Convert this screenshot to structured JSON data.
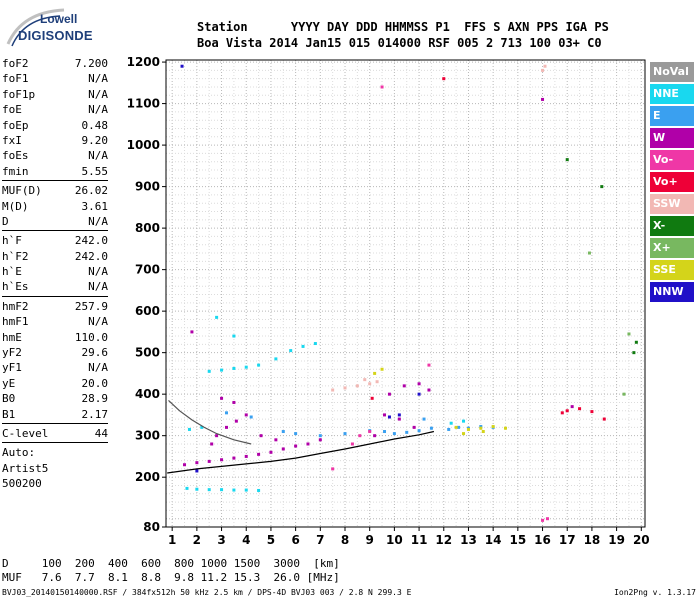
{
  "logo": {
    "line1": "Lowell",
    "line2": "DIGISONDE"
  },
  "header": {
    "row1": [
      "Station",
      "YYYY",
      "DAY",
      "DDD",
      "HHMMSS",
      "P1",
      "FFS",
      "S",
      "AXN",
      "PPS",
      "IGA",
      "PS"
    ],
    "row2": [
      "Boa Vista",
      "2014",
      "Jan15",
      "015",
      "014000",
      "RSF",
      "005",
      "2",
      "713",
      "100",
      "03+",
      "C0"
    ]
  },
  "params": {
    "group1": [
      {
        "label": "foF2",
        "value": "7.200"
      },
      {
        "label": "foF1",
        "value": "N/A"
      },
      {
        "label": "foF1p",
        "value": "N/A"
      },
      {
        "label": "foE",
        "value": "N/A"
      },
      {
        "label": "foEp",
        "value": "0.48"
      },
      {
        "label": "fxI",
        "value": "9.20"
      },
      {
        "label": "foEs",
        "value": "N/A"
      },
      {
        "label": "fmin",
        "value": "5.55"
      }
    ],
    "group2": [
      {
        "label": "MUF(D)",
        "value": "26.02"
      },
      {
        "label": "M(D)",
        "value": "3.61"
      },
      {
        "label": "D",
        "value": "N/A"
      }
    ],
    "group3": [
      {
        "label": "h`F",
        "value": "242.0"
      },
      {
        "label": "h`F2",
        "value": "242.0"
      },
      {
        "label": "h`E",
        "value": "N/A"
      },
      {
        "label": "h`Es",
        "value": "N/A"
      }
    ],
    "group4": [
      {
        "label": "hmF2",
        "value": "257.9"
      },
      {
        "label": "hmF1",
        "value": "N/A"
      },
      {
        "label": "hmE",
        "value": "110.0"
      },
      {
        "label": "yF2",
        "value": "29.6"
      },
      {
        "label": "yF1",
        "value": "N/A"
      },
      {
        "label": "yE",
        "value": "20.0"
      },
      {
        "label": "B0",
        "value": "28.9"
      },
      {
        "label": "B1",
        "value": "2.17"
      }
    ],
    "group5": [
      {
        "label": "C-level",
        "value": "44"
      }
    ],
    "notes": [
      "Auto:",
      "Artist5",
      "500200"
    ]
  },
  "legend": [
    {
      "label": "NoVal",
      "color": "#9a9a9a"
    },
    {
      "label": "NNE",
      "color": "#19d8ef"
    },
    {
      "label": "E",
      "color": "#3aa0f0"
    },
    {
      "label": "W",
      "color": "#b000a8"
    },
    {
      "label": "Vo-",
      "color": "#ef37a6"
    },
    {
      "label": "Vo+",
      "color": "#ee0037"
    },
    {
      "label": "SSW",
      "color": "#f2b8b4"
    },
    {
      "label": "X-",
      "color": "#107a10"
    },
    {
      "label": "X+",
      "color": "#78b860"
    },
    {
      "label": "SSE",
      "color": "#d4d41a"
    },
    {
      "label": "NNW",
      "color": "#2010c8"
    }
  ],
  "chart_data": {
    "type": "scatter",
    "title": "",
    "xlabel": "",
    "ylabel": "",
    "xlim": [
      0.75,
      20.15
    ],
    "ylim": [
      80,
      1205
    ],
    "x_ticks": [
      1,
      2,
      3,
      4,
      5,
      6,
      7,
      8,
      9,
      10,
      11,
      12,
      13,
      14,
      15,
      16,
      17,
      18,
      19,
      20
    ],
    "y_ticks": [
      80,
      200,
      300,
      400,
      500,
      600,
      700,
      800,
      900,
      1000,
      1100,
      1200
    ],
    "grid": true,
    "series": [
      {
        "color": "#19d8ef",
        "points": [
          [
            1.6,
            173
          ],
          [
            2.0,
            171
          ],
          [
            2.5,
            170
          ],
          [
            3.0,
            170
          ],
          [
            3.5,
            169
          ],
          [
            4.0,
            169
          ],
          [
            4.5,
            168
          ],
          [
            2.5,
            455
          ],
          [
            3.0,
            458
          ],
          [
            3.5,
            462
          ],
          [
            4.0,
            465
          ],
          [
            4.5,
            470
          ],
          [
            5.2,
            485
          ],
          [
            5.8,
            505
          ],
          [
            6.3,
            515
          ],
          [
            6.8,
            522
          ],
          [
            3.5,
            540
          ],
          [
            2.8,
            585
          ],
          [
            1.7,
            315
          ],
          [
            2.2,
            320
          ],
          [
            12.3,
            330
          ],
          [
            12.8,
            335
          ]
        ]
      },
      {
        "color": "#3aa0f0",
        "points": [
          [
            9.6,
            310
          ],
          [
            10.0,
            305
          ],
          [
            10.5,
            308
          ],
          [
            11.0,
            312
          ],
          [
            11.5,
            318
          ],
          [
            12.2,
            315
          ],
          [
            12.6,
            320
          ],
          [
            13.0,
            318
          ],
          [
            13.5,
            322
          ],
          [
            14.0,
            320
          ],
          [
            5.5,
            310
          ],
          [
            6.0,
            305
          ],
          [
            7.0,
            300
          ],
          [
            8.0,
            305
          ],
          [
            9.0,
            312
          ],
          [
            11.2,
            340
          ],
          [
            3.2,
            355
          ],
          [
            4.2,
            345
          ]
        ]
      },
      {
        "color": "#b000a8",
        "points": [
          [
            1.5,
            230
          ],
          [
            2.0,
            235
          ],
          [
            2.5,
            238
          ],
          [
            3.0,
            242
          ],
          [
            3.5,
            246
          ],
          [
            4.0,
            250
          ],
          [
            4.5,
            255
          ],
          [
            5.0,
            260
          ],
          [
            5.5,
            268
          ],
          [
            6.0,
            275
          ],
          [
            6.5,
            280
          ],
          [
            7.0,
            290
          ],
          [
            2.8,
            300
          ],
          [
            3.2,
            320
          ],
          [
            3.6,
            335
          ],
          [
            4.0,
            350
          ],
          [
            4.6,
            300
          ],
          [
            5.2,
            290
          ],
          [
            9.2,
            300
          ],
          [
            9.8,
            400
          ],
          [
            10.4,
            420
          ],
          [
            11.0,
            425
          ],
          [
            11.4,
            410
          ],
          [
            9.6,
            350
          ],
          [
            10.2,
            340
          ],
          [
            10.8,
            320
          ],
          [
            3.0,
            390
          ],
          [
            3.5,
            380
          ],
          [
            2.6,
            280
          ],
          [
            1.8,
            550
          ],
          [
            17.2,
            370
          ],
          [
            16.0,
            1110
          ]
        ]
      },
      {
        "color": "#ef37a6",
        "points": [
          [
            8.6,
            300
          ],
          [
            9.0,
            310
          ],
          [
            8.3,
            280
          ],
          [
            9.5,
            1140
          ],
          [
            16.0,
            96
          ],
          [
            16.2,
            100
          ],
          [
            11.4,
            470
          ],
          [
            7.5,
            220
          ]
        ]
      },
      {
        "color": "#ee0037",
        "points": [
          [
            17.0,
            360
          ],
          [
            17.5,
            365
          ],
          [
            18.0,
            358
          ],
          [
            16.8,
            355
          ],
          [
            18.5,
            340
          ],
          [
            12.0,
            1160
          ],
          [
            9.1,
            390
          ]
        ]
      },
      {
        "color": "#f2b8b4",
        "points": [
          [
            7.5,
            410
          ],
          [
            8.0,
            415
          ],
          [
            8.5,
            420
          ],
          [
            9.0,
            425
          ],
          [
            9.3,
            430
          ],
          [
            8.8,
            435
          ],
          [
            16.0,
            1180
          ],
          [
            16.1,
            1190
          ]
        ]
      },
      {
        "color": "#107a10",
        "points": [
          [
            17.0,
            965
          ],
          [
            19.7,
            500
          ],
          [
            19.8,
            525
          ],
          [
            18.4,
            900
          ]
        ]
      },
      {
        "color": "#78b860",
        "points": [
          [
            17.9,
            740
          ],
          [
            19.3,
            400
          ],
          [
            19.5,
            545
          ]
        ]
      },
      {
        "color": "#d4d41a",
        "points": [
          [
            12.5,
            320
          ],
          [
            13.0,
            315
          ],
          [
            13.5,
            318
          ],
          [
            14.0,
            322
          ],
          [
            14.5,
            318
          ],
          [
            12.8,
            305
          ],
          [
            13.6,
            310
          ],
          [
            9.2,
            450
          ],
          [
            9.5,
            460
          ]
        ]
      },
      {
        "color": "#2010c8",
        "points": [
          [
            1.4,
            1190
          ],
          [
            9.8,
            345
          ],
          [
            10.2,
            350
          ],
          [
            11.0,
            400
          ],
          [
            2.0,
            215
          ]
        ]
      }
    ],
    "traces": [
      {
        "name": "",
        "color": "#000000",
        "points": [
          [
            0.8,
            210
          ],
          [
            2.0,
            220
          ],
          [
            3.0,
            226
          ],
          [
            4.0,
            232
          ],
          [
            5.0,
            238
          ],
          [
            6.0,
            246
          ],
          [
            7.0,
            257
          ],
          [
            8.0,
            268
          ],
          [
            9.0,
            280
          ],
          [
            10.0,
            292
          ],
          [
            11.0,
            302
          ],
          [
            11.6,
            310
          ]
        ]
      },
      {
        "name": "",
        "color": "#555555",
        "points": [
          [
            0.85,
            385
          ],
          [
            1.3,
            360
          ],
          [
            1.8,
            338
          ],
          [
            2.3,
            320
          ],
          [
            2.8,
            305
          ],
          [
            3.5,
            290
          ],
          [
            4.2,
            280
          ]
        ]
      }
    ],
    "bottom_table": {
      "D": [
        "100",
        "200",
        "400",
        "600",
        "800",
        "1000",
        "1500",
        "3000",
        "[km]"
      ],
      "MUF": [
        "7.6",
        "7.7",
        "8.1",
        "8.8",
        "9.8",
        "11.2",
        "15.3",
        "26.0",
        "[MHz]"
      ]
    }
  },
  "footer": "BVJ03_20140150140000.RSF / 384fx512h 50 kHz 2.5 km / DPS-4D BVJ03 003 / 2.8 N 299.3 E",
  "version": "Ion2Png v. 1.3.17"
}
